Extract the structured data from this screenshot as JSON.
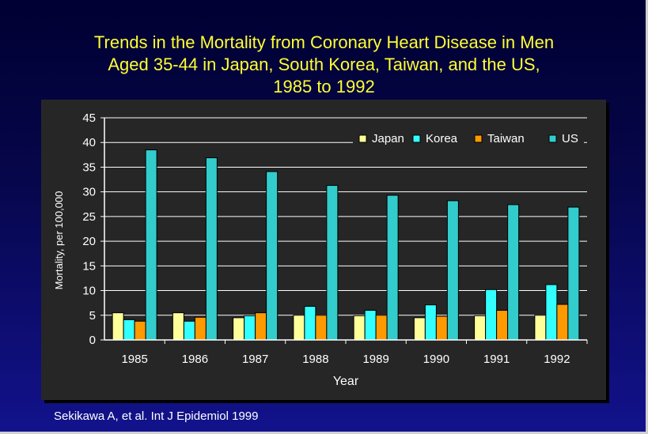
{
  "title_lines": [
    "Trends in the Mortality from Coronary Heart Disease in Men",
    "Aged 35-44 in Japan, South Korea, Taiwan, and the US,",
    "1985 to 1992"
  ],
  "source": "Sekikawa A, et al. Int J Epidemiol 1999",
  "colors": {
    "Japan": "#ffff99",
    "Korea": "#33ffff",
    "Taiwan": "#ff9900",
    "US": "#33cccc"
  },
  "chart_data": {
    "type": "bar",
    "title": "",
    "xlabel": "Year",
    "ylabel": "Mortality, per 100,000",
    "ylim": [
      0,
      45
    ],
    "yticks": [
      "0",
      "5",
      "10",
      "15",
      "20",
      "25",
      "30",
      "35",
      "40",
      "45"
    ],
    "grid": true,
    "legend_position": "top-right",
    "categories": [
      "1985",
      "1986",
      "1987",
      "1988",
      "1989",
      "1990",
      "1991",
      "1992"
    ],
    "series": [
      {
        "name": "Japan",
        "values": [
          5.5,
          5.5,
          4.5,
          5.0,
          4.9,
          4.5,
          4.9,
          5.0
        ]
      },
      {
        "name": "Korea",
        "values": [
          4.1,
          3.8,
          4.9,
          6.8,
          6.0,
          7.1,
          10.2,
          11.2
        ]
      },
      {
        "name": "Taiwan",
        "values": [
          3.8,
          4.6,
          5.5,
          5.0,
          5.0,
          4.8,
          6.0,
          7.2
        ]
      },
      {
        "name": "US",
        "values": [
          38.5,
          36.9,
          34.1,
          31.3,
          29.3,
          28.2,
          27.4,
          26.9
        ]
      }
    ]
  }
}
